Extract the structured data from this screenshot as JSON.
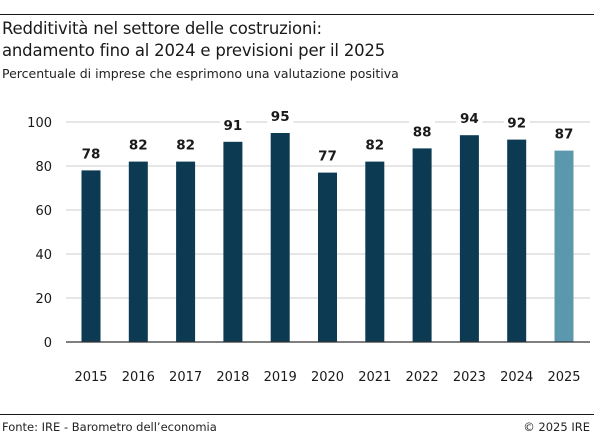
{
  "title_line1": "Redditività nel settore delle costruzioni:",
  "title_line2": "andamento fino al 2024 e previsioni per il 2025",
  "subtitle": "Percentuale di imprese che esprimono una valutazione positiva",
  "source": "Fonte: IRE - Barometro dell’economia",
  "copyright": "© 2025 IRE",
  "colors": {
    "actual": "#0b3a52",
    "forecast": "#5b98ad",
    "axis": "#333333",
    "grid": "#cccccc"
  },
  "chart_data": {
    "type": "bar",
    "categories": [
      "2015",
      "2016",
      "2017",
      "2018",
      "2019",
      "2020",
      "2021",
      "2022",
      "2023",
      "2024",
      "2025"
    ],
    "values": [
      78,
      82,
      82,
      91,
      95,
      77,
      82,
      88,
      94,
      92,
      87
    ],
    "forecast_categories": [
      "2025"
    ],
    "ylim": [
      0,
      100
    ],
    "yticks": [
      0,
      20,
      40,
      60,
      80,
      100
    ],
    "grid": true,
    "data_labels": true
  }
}
